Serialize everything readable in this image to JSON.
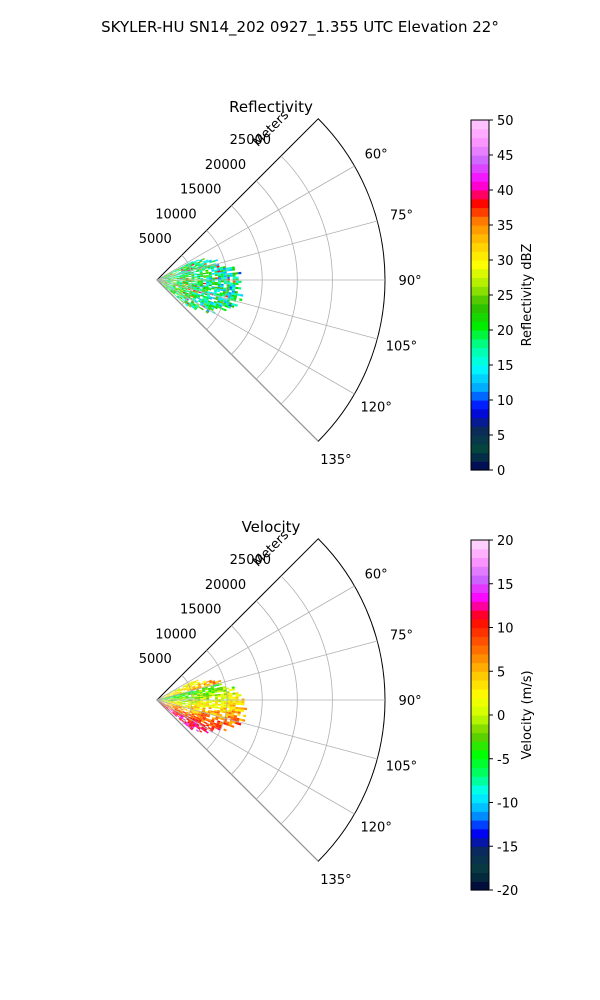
{
  "figure": {
    "title": "SKYLER-HU  SN14_202  0927_1.355 UTC Elevation 22°"
  },
  "chart_data": [
    {
      "type": "heatmap",
      "projection": "polar-sector",
      "title": "Reflectivity",
      "range_axis_label": "Meters",
      "range_ticks": [
        5000,
        10000,
        15000,
        20000,
        25000
      ],
      "range_max": 32500,
      "azimuth_range": [
        45,
        135
      ],
      "azimuth_ticks": [
        "60°",
        "75°",
        "90°",
        "105°",
        "120°",
        "135°"
      ],
      "grid": true,
      "colorbar": {
        "label": "Reflectivity dBZ",
        "min": 0,
        "max": 50,
        "ticks": [
          0,
          5,
          10,
          15,
          20,
          25,
          30,
          35,
          40,
          45,
          50
        ],
        "colormap": "pyart_NWSRef"
      },
      "echo_region": {
        "azimuth_span": [
          62,
          130
        ],
        "range_span": [
          0,
          13000
        ],
        "typical_value": 22
      }
    },
    {
      "type": "heatmap",
      "projection": "polar-sector",
      "title": "Velocity",
      "range_axis_label": "Meters",
      "range_ticks": [
        5000,
        10000,
        15000,
        20000,
        25000
      ],
      "range_max": 32500,
      "azimuth_range": [
        45,
        135
      ],
      "azimuth_ticks": [
        "60°",
        "75°",
        "90°",
        "105°",
        "120°",
        "135°"
      ],
      "grid": true,
      "colorbar": {
        "label": "Velocity (m/s)",
        "min": -20,
        "max": 20,
        "ticks": [
          -20,
          -15,
          -10,
          -5,
          0,
          5,
          10,
          15,
          20
        ],
        "colormap": "pyart_NWSVel"
      },
      "echo_region": {
        "azimuth_span": [
          62,
          130
        ],
        "range_span": [
          0,
          13000
        ],
        "typical_value": 0
      }
    }
  ],
  "colors": {
    "reflectivity_stops": [
      "#00005a",
      "#06463c",
      "#0a2a5a",
      "#0000ff",
      "#00aaff",
      "#00ffff",
      "#00ff99",
      "#00ee00",
      "#33bb00",
      "#aaee00",
      "#ffff00",
      "#ffcc00",
      "#ff8800",
      "#ff0000",
      "#ff00ff",
      "#cc66ff",
      "#ff99ff",
      "#ffccff"
    ],
    "velocity_stops": [
      "#00003c",
      "#063c3c",
      "#0a2a5a",
      "#0000ff",
      "#00aaff",
      "#00ffff",
      "#00ff66",
      "#00ff00",
      "#66cc00",
      "#ccff00",
      "#ffff00",
      "#ffcc00",
      "#ff8800",
      "#ff4400",
      "#ff0000",
      "#ff00ff",
      "#cc66ff",
      "#ff99ff",
      "#ffe0ff"
    ]
  }
}
